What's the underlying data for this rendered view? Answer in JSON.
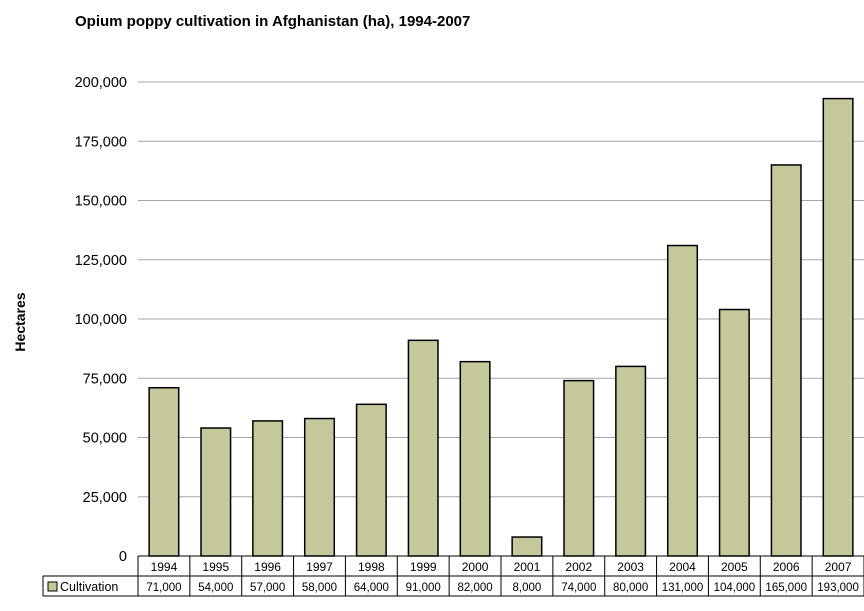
{
  "chart_data": {
    "type": "bar",
    "title": "Opium poppy cultivation in Afghanistan (ha), 1994-2007",
    "xlabel": "",
    "ylabel": "Hectares",
    "categories": [
      "1994",
      "1995",
      "1996",
      "1997",
      "1998",
      "1999",
      "2000",
      "2001",
      "2002",
      "2003",
      "2004",
      "2005",
      "2006",
      "2007"
    ],
    "series": [
      {
        "name": "Cultivation",
        "values": [
          71000,
          54000,
          57000,
          58000,
          64000,
          91000,
          82000,
          8000,
          74000,
          80000,
          131000,
          104000,
          165000,
          193000
        ]
      }
    ],
    "table_values": [
      "71,000",
      "54,000",
      "57,000",
      "58,000",
      "64,000",
      "91,000",
      "82,000",
      "8,000",
      "74,000",
      "80,000",
      "131,000",
      "104,000",
      "165,000",
      "193,000"
    ],
    "ylim": [
      0,
      200000
    ],
    "yticks": [
      0,
      25000,
      50000,
      75000,
      100000,
      125000,
      150000,
      175000,
      200000
    ],
    "ytick_labels": [
      "0",
      "25,000",
      "50,000",
      "75,000",
      "100,000",
      "125,000",
      "150,000",
      "175,000",
      "200,000"
    ],
    "grid": true,
    "legend": "data-table",
    "colors": {
      "bar_fill": "#c5c89a",
      "bar_stroke": "#000000",
      "gridline": "#a6a6a6",
      "text": "#000000"
    }
  }
}
